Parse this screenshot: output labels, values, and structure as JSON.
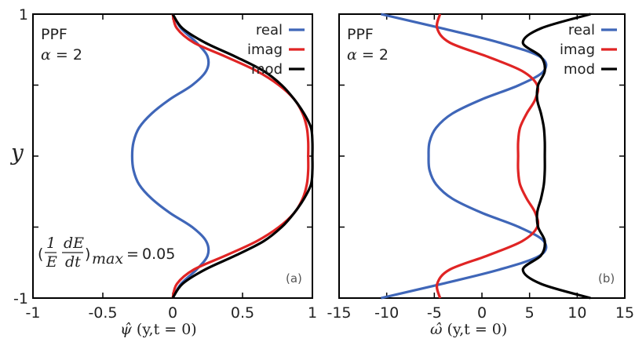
{
  "chart_data": [
    {
      "type": "line",
      "panel_tag": "(a)",
      "annotation": {
        "line1": "PPF",
        "line2_var": "α",
        "line2_rest": " = 2"
      },
      "growth_note": {
        "value": "0.05",
        "sub": "max",
        "frac_top": "1",
        "frac_bot": "E",
        "dfrac_top": "dE",
        "dfrac_bot": "dt"
      },
      "xlabel_var": "ψ̂",
      "xlabel_rest": "(y,t = 0)",
      "ylabel": "y",
      "xlim": [
        -1,
        1
      ],
      "ylim": [
        -1,
        1
      ],
      "xticks": [
        "-1",
        "-0.5",
        "0",
        "0.5",
        "1"
      ],
      "yticks": [
        "-1",
        "1"
      ],
      "legend_position": "top-right",
      "series": [
        {
          "name": "real",
          "color": "#3f66b8",
          "y": [
            -1,
            -0.9,
            -0.8,
            -0.7,
            -0.6,
            -0.5,
            -0.4,
            -0.3,
            -0.2,
            -0.1,
            0,
            0.1,
            0.2,
            0.3,
            0.4,
            0.5,
            0.6,
            0.7,
            0.8,
            0.9,
            1
          ],
          "values": [
            0,
            0.06,
            0.17,
            0.25,
            0.24,
            0.14,
            -0.02,
            -0.15,
            -0.24,
            -0.28,
            -0.29,
            -0.28,
            -0.24,
            -0.15,
            -0.02,
            0.14,
            0.24,
            0.25,
            0.17,
            0.06,
            0
          ]
        },
        {
          "name": "imag",
          "color": "#e02424",
          "y": [
            -1,
            -0.9,
            -0.8,
            -0.7,
            -0.6,
            -0.5,
            -0.4,
            -0.3,
            -0.2,
            -0.1,
            0,
            0.1,
            0.2,
            0.3,
            0.4,
            0.5,
            0.6,
            0.7,
            0.8,
            0.9,
            1
          ],
          "values": [
            0,
            0.03,
            0.15,
            0.38,
            0.6,
            0.76,
            0.87,
            0.93,
            0.96,
            0.97,
            0.97,
            0.97,
            0.96,
            0.93,
            0.87,
            0.76,
            0.6,
            0.38,
            0.15,
            0.03,
            0
          ]
        },
        {
          "name": "mod",
          "color": "#000000",
          "y": [
            -1,
            -0.9,
            -0.8,
            -0.7,
            -0.6,
            -0.5,
            -0.4,
            -0.3,
            -0.2,
            -0.1,
            0,
            0.1,
            0.2,
            0.3,
            0.4,
            0.5,
            0.6,
            0.7,
            0.8,
            0.9,
            1
          ],
          "values": [
            0,
            0.07,
            0.23,
            0.45,
            0.65,
            0.78,
            0.87,
            0.94,
            0.99,
            1.0,
            1.0,
            1.0,
            0.99,
            0.94,
            0.87,
            0.78,
            0.65,
            0.45,
            0.23,
            0.07,
            0
          ]
        }
      ]
    },
    {
      "type": "line",
      "panel_tag": "(b)",
      "annotation": {
        "line1": "PPF",
        "line2_var": "α",
        "line2_rest": " = 2"
      },
      "xlabel_var": "ω̂",
      "xlabel_rest": "(y,t = 0)",
      "xlim": [
        -15,
        15
      ],
      "ylim": [
        -1,
        1
      ],
      "xticks": [
        "-15",
        "-10",
        "-5",
        "0",
        "5",
        "10",
        "15"
      ],
      "legend_position": "top-right",
      "series": [
        {
          "name": "real",
          "color": "#3f66b8",
          "y": [
            -1,
            -0.9,
            -0.8,
            -0.7,
            -0.6,
            -0.5,
            -0.4,
            -0.3,
            -0.2,
            -0.1,
            0,
            0.1,
            0.2,
            0.3,
            0.4,
            0.5,
            0.6,
            0.7,
            0.8,
            0.9,
            1
          ],
          "values": [
            -10.6,
            -4.2,
            1.8,
            6.1,
            6.5,
            3.9,
            0.0,
            -3.1,
            -4.8,
            -5.5,
            -5.6,
            -5.5,
            -4.8,
            -3.1,
            0.0,
            3.9,
            6.5,
            6.1,
            1.8,
            -4.2,
            -10.6
          ]
        },
        {
          "name": "imag",
          "color": "#e02424",
          "y": [
            -1,
            -0.9,
            -0.8,
            -0.7,
            -0.6,
            -0.5,
            -0.4,
            -0.3,
            -0.2,
            -0.1,
            0,
            0.1,
            0.2,
            0.3,
            0.4,
            0.5,
            0.6,
            0.7,
            0.8,
            0.9,
            1
          ],
          "values": [
            -4.4,
            -4.7,
            -3.4,
            0.6,
            4.2,
            5.8,
            5.6,
            4.7,
            4.0,
            3.8,
            3.8,
            3.8,
            4.0,
            4.7,
            5.6,
            5.8,
            4.2,
            0.6,
            -3.4,
            -4.7,
            -4.4
          ]
        },
        {
          "name": "mod",
          "color": "#000000",
          "y": [
            -1,
            -0.9,
            -0.8,
            -0.7,
            -0.6,
            -0.5,
            -0.4,
            -0.3,
            -0.2,
            -0.1,
            0,
            0.1,
            0.2,
            0.3,
            0.4,
            0.5,
            0.6,
            0.7,
            0.8,
            0.9,
            1
          ],
          "values": [
            11.4,
            6.2,
            4.3,
            6.2,
            6.6,
            5.9,
            5.8,
            6.2,
            6.5,
            6.6,
            6.6,
            6.6,
            6.5,
            6.2,
            5.8,
            5.9,
            6.6,
            6.2,
            4.3,
            6.2,
            11.4
          ]
        }
      ]
    }
  ]
}
